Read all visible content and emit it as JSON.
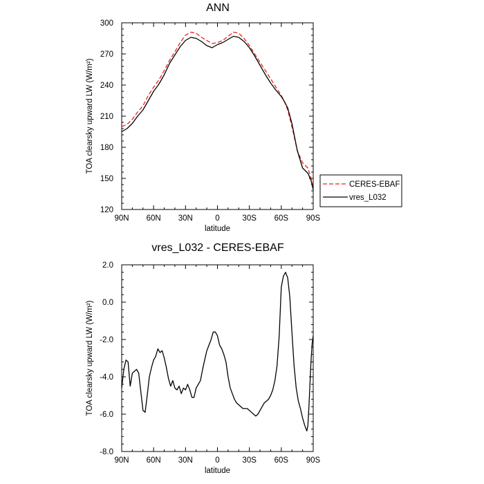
{
  "chart_data": [
    {
      "type": "line",
      "title": "ANN",
      "xlabel": "latitude",
      "ylabel": "TOA clearsky upward LW (W/m²)",
      "xlim": [
        90,
        -90
      ],
      "ylim": [
        120,
        300
      ],
      "x_ticks": [
        90,
        60,
        30,
        0,
        -30,
        -60,
        -90
      ],
      "x_tick_labels": [
        "90N",
        "60N",
        "30N",
        "0",
        "30S",
        "60S",
        "90S"
      ],
      "y_ticks": [
        120,
        150,
        180,
        210,
        240,
        270,
        300
      ],
      "y_tick_labels": [
        "120",
        "150",
        "180",
        "210",
        "240",
        "270",
        "300"
      ],
      "legend": "right",
      "series": [
        {
          "name": "CERES-EBAF",
          "color": "#e8201e",
          "dash": "dashed",
          "x": [
            90,
            85,
            80,
            75,
            70,
            65,
            60,
            55,
            50,
            45,
            40,
            35,
            30,
            25,
            20,
            15,
            10,
            5,
            0,
            -5,
            -10,
            -15,
            -20,
            -25,
            -30,
            -35,
            -40,
            -45,
            -50,
            -55,
            -60,
            -63,
            -66,
            -70,
            -75,
            -80,
            -85,
            -88,
            -90
          ],
          "y": [
            200,
            202,
            207,
            214,
            220,
            230,
            238,
            245,
            254,
            264,
            272,
            281,
            288,
            291,
            290,
            286,
            283,
            280,
            281,
            283,
            287,
            291,
            290,
            285,
            278,
            270,
            262,
            254,
            246,
            238,
            230,
            224,
            216,
            200,
            177,
            165,
            160,
            150,
            140
          ]
        },
        {
          "name": "vres_L032",
          "color": "#000000",
          "dash": "solid",
          "x": [
            90,
            85,
            80,
            75,
            70,
            65,
            60,
            55,
            50,
            45,
            40,
            35,
            30,
            25,
            20,
            15,
            10,
            5,
            0,
            -5,
            -10,
            -15,
            -20,
            -25,
            -30,
            -35,
            -40,
            -45,
            -50,
            -55,
            -60,
            -63,
            -66,
            -70,
            -75,
            -80,
            -85,
            -88,
            -90
          ],
          "y": [
            195,
            198,
            203,
            210,
            216,
            225,
            234,
            241,
            250,
            261,
            269,
            277,
            283,
            286,
            285,
            282,
            278,
            276,
            279,
            281,
            284,
            287,
            286,
            282,
            276,
            268,
            259,
            250,
            242,
            235,
            229,
            224,
            218,
            203,
            177,
            160,
            155,
            148,
            139
          ]
        }
      ]
    },
    {
      "type": "line",
      "title": "vres_L032 - CERES-EBAF",
      "xlabel": "latitude",
      "ylabel": "TOA clearsky upward LW (W/m²)",
      "xlim": [
        90,
        -90
      ],
      "ylim": [
        -8,
        2
      ],
      "x_ticks": [
        90,
        60,
        30,
        0,
        -30,
        -60,
        -90
      ],
      "x_tick_labels": [
        "90N",
        "60N",
        "30N",
        "0",
        "30S",
        "60S",
        "90S"
      ],
      "y_ticks": [
        -8,
        -6,
        -4,
        -2,
        0,
        2
      ],
      "y_tick_labels": [
        "-8.0",
        "-6.0",
        "-4.0",
        "-2.0",
        "0.0",
        "2.0"
      ],
      "series": [
        {
          "color": "#000000",
          "dash": "solid",
          "x": [
            90,
            88,
            86,
            84,
            82,
            80,
            78,
            76,
            74,
            72,
            70,
            68,
            66,
            64,
            62,
            60,
            58,
            56,
            54,
            52,
            50,
            48,
            46,
            44,
            42,
            40,
            38,
            36,
            34,
            32,
            30,
            28,
            26,
            24,
            22,
            20,
            18,
            16,
            14,
            12,
            10,
            8,
            6,
            4,
            2,
            0,
            -2,
            -4,
            -6,
            -8,
            -10,
            -12,
            -14,
            -16,
            -18,
            -20,
            -22,
            -24,
            -26,
            -28,
            -30,
            -32,
            -34,
            -36,
            -38,
            -40,
            -42,
            -44,
            -46,
            -48,
            -50,
            -52,
            -54,
            -56,
            -58,
            -60,
            -62,
            -64,
            -66,
            -68,
            -70,
            -72,
            -74,
            -76,
            -78,
            -80,
            -82,
            -84,
            -85,
            -86,
            -87,
            -88,
            -89,
            -90
          ],
          "y": [
            -4.6,
            -3.6,
            -3.1,
            -3.2,
            -4.5,
            -3.8,
            -3.7,
            -3.6,
            -3.8,
            -4.8,
            -5.8,
            -5.9,
            -5.0,
            -4.0,
            -3.5,
            -3.1,
            -2.9,
            -2.5,
            -2.7,
            -2.6,
            -3.0,
            -3.5,
            -4.1,
            -4.5,
            -4.2,
            -4.6,
            -4.7,
            -4.5,
            -4.9,
            -4.6,
            -4.7,
            -4.4,
            -4.7,
            -5.1,
            -5.1,
            -4.6,
            -4.4,
            -4.2,
            -3.6,
            -3.1,
            -2.6,
            -2.3,
            -2.0,
            -1.6,
            -1.6,
            -1.8,
            -2.3,
            -2.5,
            -2.8,
            -3.2,
            -4.0,
            -4.6,
            -4.9,
            -5.2,
            -5.4,
            -5.5,
            -5.6,
            -5.7,
            -5.7,
            -5.7,
            -5.8,
            -5.9,
            -6.0,
            -6.1,
            -6.0,
            -5.8,
            -5.6,
            -5.4,
            -5.3,
            -5.2,
            -5.0,
            -4.7,
            -4.2,
            -3.4,
            -1.8,
            0.8,
            1.4,
            1.6,
            1.3,
            0.3,
            -1.6,
            -3.4,
            -4.6,
            -5.3,
            -5.7,
            -6.2,
            -6.6,
            -6.9,
            -6.6,
            -5.6,
            -4.3,
            -3.1,
            -2.2,
            -1.8
          ]
        }
      ]
    }
  ]
}
